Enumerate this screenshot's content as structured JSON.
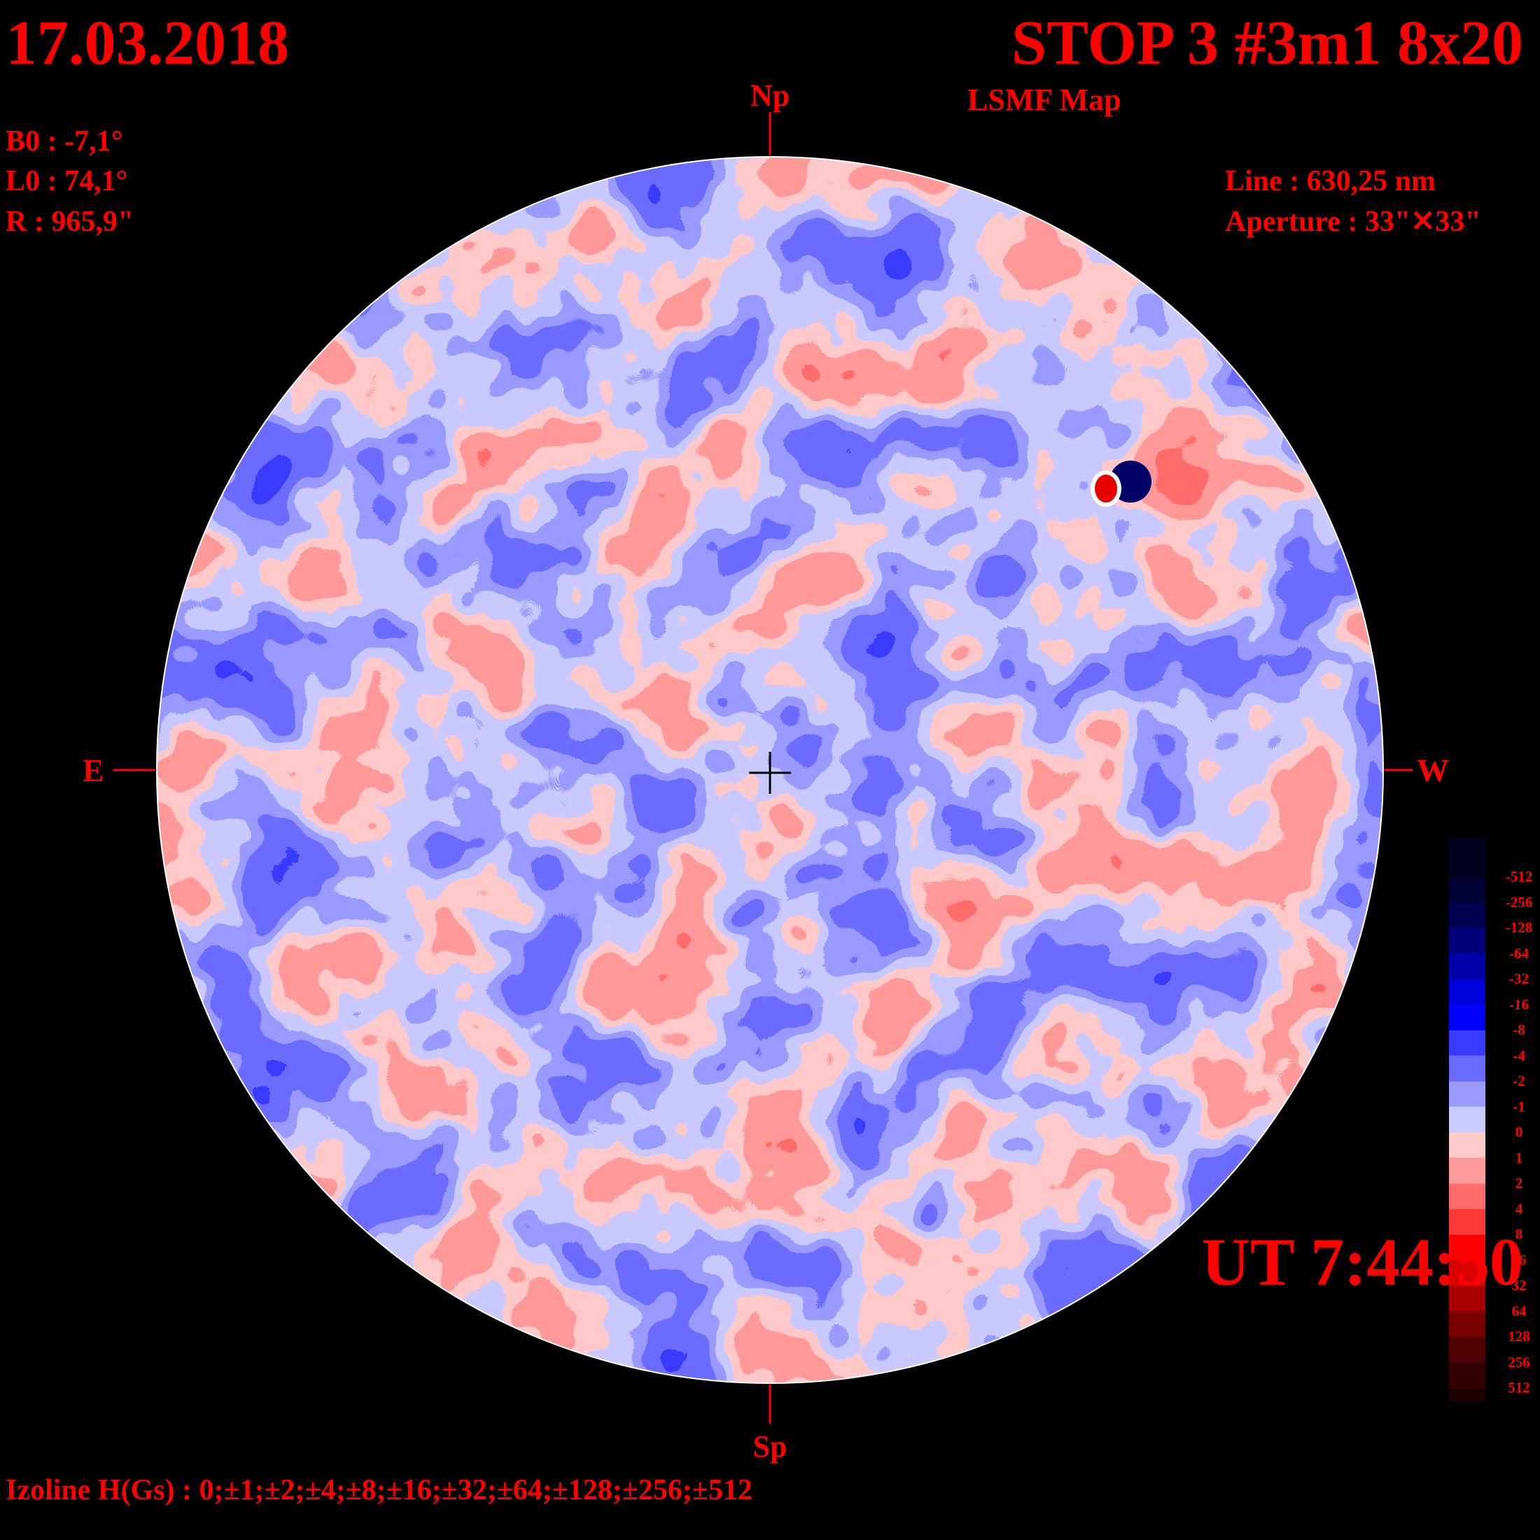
{
  "header": {
    "date": "17.03.2018",
    "title": "STOP 3 #3m1 8x20",
    "subtitle": "LSMF  Map",
    "ut": "UT 7:44:50"
  },
  "params": {
    "b0": "B0 : -7,1°",
    "l0": "L0 : 74,1°",
    "r": "R  : 965,9\"",
    "line": "Line :  630,25 nm",
    "aperture": "Aperture : 33\"✕33\""
  },
  "axes": {
    "north": "Np",
    "south": "Sp",
    "east": "E",
    "west": "W"
  },
  "footer": {
    "izoline": "Izoline H(Gs) : 0;±1;±2;±4;±8;±16;±32;±64;±128;±256;±512"
  },
  "colorbar": {
    "levels": [
      {
        "label": "-512",
        "color": "#00001e"
      },
      {
        "label": "-256",
        "color": "#000032"
      },
      {
        "label": "-128",
        "color": "#000050"
      },
      {
        "label": "-64",
        "color": "#00007a"
      },
      {
        "label": "-32",
        "color": "#0000a8"
      },
      {
        "label": "-16",
        "color": "#0000d8"
      },
      {
        "label": "-8",
        "color": "#0000ff"
      },
      {
        "label": "-4",
        "color": "#3a3aff"
      },
      {
        "label": "-2",
        "color": "#6a6aff"
      },
      {
        "label": "-1",
        "color": "#9a9aff"
      },
      {
        "label": "0",
        "color": "#cacaff"
      },
      {
        "label": "1",
        "color": "#ffcaca"
      },
      {
        "label": "2",
        "color": "#ff9a9a"
      },
      {
        "label": "4",
        "color": "#ff6a6a"
      },
      {
        "label": "8",
        "color": "#ff3a3a"
      },
      {
        "label": "16",
        "color": "#ff0000"
      },
      {
        "label": "32",
        "color": "#d80000"
      },
      {
        "label": "64",
        "color": "#a80000"
      },
      {
        "label": "128",
        "color": "#7a0000"
      },
      {
        "label": "256",
        "color": "#500000"
      },
      {
        "label": "512",
        "color": "#320000"
      }
    ],
    "end_color": "#1e0000"
  }
}
